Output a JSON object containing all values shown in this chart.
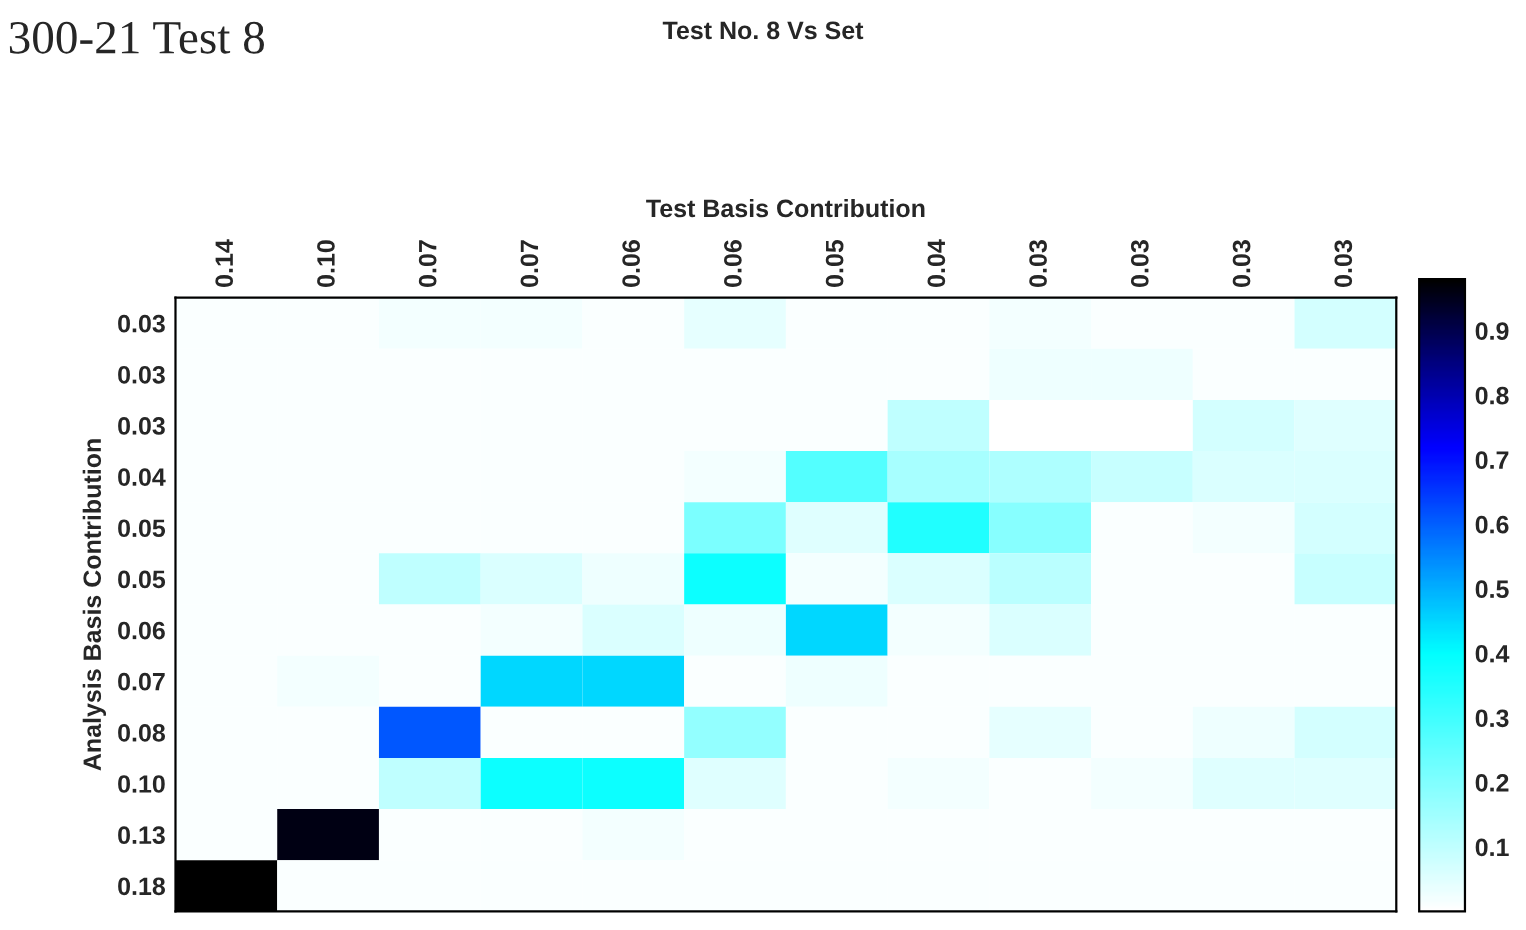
{
  "chart_data": {
    "type": "heatmap",
    "title": "Test No. 8 Vs Set",
    "xlabel": "Test Basis Contribution",
    "ylabel": "Analysis Basis Contribution",
    "annotations": [
      "300-21 Test 8"
    ],
    "categories": [
      "0.14",
      "0.10",
      "0.07",
      "0.07",
      "0.06",
      "0.06",
      "0.05",
      "0.04",
      "0.03",
      "0.03",
      "0.03",
      "0.03"
    ],
    "y_categories": [
      "0.03",
      "0.03",
      "0.03",
      "0.04",
      "0.05",
      "0.05",
      "0.06",
      "0.07",
      "0.08",
      "0.10",
      "0.13",
      "0.18"
    ],
    "cells": [
      [
        0.01,
        0.01,
        0.02,
        0.02,
        0.01,
        0.04,
        0.01,
        0.01,
        0.02,
        0.01,
        0.01,
        0.07
      ],
      [
        0.01,
        0.01,
        0.01,
        0.01,
        0.01,
        0.01,
        0.01,
        0.01,
        0.03,
        0.03,
        0.01,
        0.01
      ],
      [
        0.01,
        0.01,
        0.01,
        0.01,
        0.01,
        0.01,
        0.01,
        0.1,
        0.0,
        0.0,
        0.07,
        0.05
      ],
      [
        0.01,
        0.01,
        0.01,
        0.01,
        0.01,
        0.02,
        0.27,
        0.14,
        0.13,
        0.09,
        0.06,
        0.06
      ],
      [
        0.01,
        0.01,
        0.01,
        0.01,
        0.01,
        0.21,
        0.05,
        0.35,
        0.19,
        0.01,
        0.02,
        0.07
      ],
      [
        0.01,
        0.01,
        0.1,
        0.06,
        0.03,
        0.38,
        0.02,
        0.06,
        0.11,
        0.01,
        0.01,
        0.09
      ],
      [
        0.01,
        0.01,
        0.01,
        0.02,
        0.06,
        0.03,
        0.45,
        0.02,
        0.06,
        0.01,
        0.01,
        0.01
      ],
      [
        0.01,
        0.02,
        0.01,
        0.45,
        0.45,
        0.01,
        0.03,
        0.01,
        0.01,
        0.01,
        0.01,
        0.01
      ],
      [
        0.01,
        0.01,
        0.61,
        0.01,
        0.01,
        0.17,
        0.01,
        0.01,
        0.04,
        0.01,
        0.03,
        0.07
      ],
      [
        0.01,
        0.01,
        0.1,
        0.38,
        0.38,
        0.05,
        0.01,
        0.02,
        0.01,
        0.02,
        0.05,
        0.05
      ],
      [
        0.01,
        0.96,
        0.01,
        0.01,
        0.02,
        0.01,
        0.01,
        0.01,
        0.01,
        0.01,
        0.01,
        0.01
      ],
      [
        0.98,
        0.01,
        0.01,
        0.01,
        0.01,
        0.01,
        0.01,
        0.01,
        0.01,
        0.01,
        0.01,
        0.01
      ]
    ],
    "clim": [
      0,
      0.98
    ],
    "cticks": [
      0.1,
      0.2,
      0.3,
      0.4,
      0.5,
      0.6,
      0.7,
      0.8,
      0.9
    ],
    "colors": [
      "#ffffff",
      "#00ffff",
      "#0000ff",
      "#000000"
    ]
  }
}
